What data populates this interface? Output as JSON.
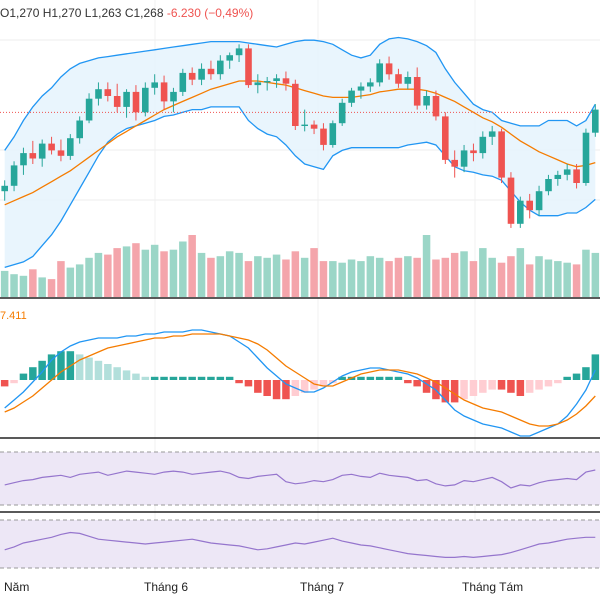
{
  "ohlc_header": {
    "open_label": "O",
    "open": "1,270",
    "high_label": "H",
    "high": "1,270",
    "low_label": "L",
    "low": "1,263",
    "close_label": "C",
    "close": "1,268",
    "change": "-6.230 (−0,49%)"
  },
  "macd_readout": "7.411",
  "colors": {
    "up": "#26a69a",
    "down": "#ef5350",
    "vol_up": "#9bd6c7",
    "vol_down": "#f4a5ab",
    "bb_band": "#2196f3",
    "bb_fill": "#e3f2fd",
    "ma": "#f57c00",
    "macd_line": "#2196f3",
    "signal_line": "#f57c00",
    "rsi": "#9575cd",
    "rsi_fill": "#ede7f6",
    "price_line": "#ef5350"
  },
  "x_axis_labels": [
    "Năm",
    "Tháng 6",
    "Tháng 7",
    "Tháng Tám"
  ],
  "chart_data": {
    "type": "candlestick",
    "title": "",
    "price_line": 1268,
    "y_range": [
      1180,
      1330
    ],
    "candles": [
      {
        "o": 1210,
        "h": 1218,
        "l": 1203,
        "c": 1214
      },
      {
        "o": 1214,
        "h": 1232,
        "l": 1210,
        "c": 1229
      },
      {
        "o": 1229,
        "h": 1242,
        "l": 1222,
        "c": 1238
      },
      {
        "o": 1238,
        "h": 1247,
        "l": 1230,
        "c": 1234
      },
      {
        "o": 1234,
        "h": 1248,
        "l": 1228,
        "c": 1245
      },
      {
        "o": 1245,
        "h": 1250,
        "l": 1237,
        "c": 1240
      },
      {
        "o": 1240,
        "h": 1248,
        "l": 1232,
        "c": 1236
      },
      {
        "o": 1236,
        "h": 1252,
        "l": 1233,
        "c": 1249
      },
      {
        "o": 1249,
        "h": 1265,
        "l": 1245,
        "c": 1262
      },
      {
        "o": 1262,
        "h": 1282,
        "l": 1260,
        "c": 1278
      },
      {
        "o": 1278,
        "h": 1290,
        "l": 1273,
        "c": 1285
      },
      {
        "o": 1285,
        "h": 1290,
        "l": 1276,
        "c": 1280
      },
      {
        "o": 1280,
        "h": 1289,
        "l": 1268,
        "c": 1272
      },
      {
        "o": 1272,
        "h": 1285,
        "l": 1264,
        "c": 1283
      },
      {
        "o": 1283,
        "h": 1288,
        "l": 1262,
        "c": 1268
      },
      {
        "o": 1268,
        "h": 1290,
        "l": 1265,
        "c": 1286
      },
      {
        "o": 1286,
        "h": 1296,
        "l": 1281,
        "c": 1290
      },
      {
        "o": 1290,
        "h": 1295,
        "l": 1270,
        "c": 1276
      },
      {
        "o": 1276,
        "h": 1286,
        "l": 1268,
        "c": 1283
      },
      {
        "o": 1283,
        "h": 1300,
        "l": 1280,
        "c": 1297
      },
      {
        "o": 1297,
        "h": 1301,
        "l": 1288,
        "c": 1292
      },
      {
        "o": 1292,
        "h": 1304,
        "l": 1288,
        "c": 1300
      },
      {
        "o": 1300,
        "h": 1306,
        "l": 1292,
        "c": 1296
      },
      {
        "o": 1296,
        "h": 1310,
        "l": 1292,
        "c": 1306
      },
      {
        "o": 1306,
        "h": 1312,
        "l": 1300,
        "c": 1310
      },
      {
        "o": 1310,
        "h": 1318,
        "l": 1305,
        "c": 1315
      },
      {
        "o": 1315,
        "h": 1318,
        "l": 1286,
        "c": 1288
      },
      {
        "o": 1288,
        "h": 1296,
        "l": 1282,
        "c": 1290
      },
      {
        "o": 1290,
        "h": 1294,
        "l": 1284,
        "c": 1291
      },
      {
        "o": 1291,
        "h": 1296,
        "l": 1286,
        "c": 1293
      },
      {
        "o": 1293,
        "h": 1298,
        "l": 1284,
        "c": 1289
      },
      {
        "o": 1289,
        "h": 1292,
        "l": 1255,
        "c": 1258
      },
      {
        "o": 1258,
        "h": 1270,
        "l": 1254,
        "c": 1259
      },
      {
        "o": 1259,
        "h": 1262,
        "l": 1252,
        "c": 1256
      },
      {
        "o": 1256,
        "h": 1260,
        "l": 1240,
        "c": 1244
      },
      {
        "o": 1244,
        "h": 1262,
        "l": 1242,
        "c": 1260
      },
      {
        "o": 1260,
        "h": 1278,
        "l": 1258,
        "c": 1275
      },
      {
        "o": 1275,
        "h": 1286,
        "l": 1272,
        "c": 1284
      },
      {
        "o": 1284,
        "h": 1290,
        "l": 1278,
        "c": 1287
      },
      {
        "o": 1287,
        "h": 1293,
        "l": 1283,
        "c": 1290
      },
      {
        "o": 1290,
        "h": 1307,
        "l": 1287,
        "c": 1304
      },
      {
        "o": 1304,
        "h": 1309,
        "l": 1292,
        "c": 1296
      },
      {
        "o": 1296,
        "h": 1300,
        "l": 1286,
        "c": 1289
      },
      {
        "o": 1289,
        "h": 1298,
        "l": 1285,
        "c": 1294
      },
      {
        "o": 1294,
        "h": 1301,
        "l": 1270,
        "c": 1273
      },
      {
        "o": 1273,
        "h": 1284,
        "l": 1270,
        "c": 1280
      },
      {
        "o": 1280,
        "h": 1284,
        "l": 1262,
        "c": 1265
      },
      {
        "o": 1265,
        "h": 1268,
        "l": 1230,
        "c": 1233
      },
      {
        "o": 1233,
        "h": 1240,
        "l": 1220,
        "c": 1228
      },
      {
        "o": 1228,
        "h": 1244,
        "l": 1224,
        "c": 1240
      },
      {
        "o": 1240,
        "h": 1245,
        "l": 1232,
        "c": 1238
      },
      {
        "o": 1238,
        "h": 1254,
        "l": 1234,
        "c": 1250
      },
      {
        "o": 1250,
        "h": 1258,
        "l": 1244,
        "c": 1254
      },
      {
        "o": 1254,
        "h": 1256,
        "l": 1216,
        "c": 1220
      },
      {
        "o": 1220,
        "h": 1224,
        "l": 1183,
        "c": 1186
      },
      {
        "o": 1186,
        "h": 1206,
        "l": 1183,
        "c": 1203
      },
      {
        "o": 1203,
        "h": 1208,
        "l": 1190,
        "c": 1196
      },
      {
        "o": 1196,
        "h": 1214,
        "l": 1192,
        "c": 1210
      },
      {
        "o": 1210,
        "h": 1222,
        "l": 1207,
        "c": 1219
      },
      {
        "o": 1219,
        "h": 1225,
        "l": 1214,
        "c": 1222
      },
      {
        "o": 1222,
        "h": 1230,
        "l": 1218,
        "c": 1226
      },
      {
        "o": 1226,
        "h": 1230,
        "l": 1212,
        "c": 1216
      },
      {
        "o": 1216,
        "h": 1256,
        "l": 1214,
        "c": 1253
      },
      {
        "o": 1253,
        "h": 1274,
        "l": 1250,
        "c": 1270
      }
    ],
    "bollinger_upper": [
      1240,
      1250,
      1262,
      1272,
      1280,
      1286,
      1294,
      1300,
      1304,
      1306,
      1308,
      1309,
      1310,
      1311,
      1312,
      1313,
      1314,
      1315,
      1316,
      1317,
      1318,
      1319,
      1320,
      1320,
      1320,
      1320,
      1319,
      1318,
      1317,
      1316,
      1318,
      1320,
      1321,
      1321,
      1320,
      1318,
      1314,
      1310,
      1308,
      1310,
      1318,
      1322,
      1323,
      1322,
      1320,
      1317,
      1312,
      1300,
      1290,
      1282,
      1274,
      1270,
      1268,
      1262,
      1260,
      1258,
      1258,
      1258,
      1262,
      1262,
      1262,
      1258,
      1262,
      1274
    ],
    "bollinger_lower": [
      1154,
      1156,
      1158,
      1162,
      1170,
      1178,
      1188,
      1200,
      1212,
      1224,
      1236,
      1246,
      1252,
      1256,
      1258,
      1260,
      1262,
      1265,
      1266,
      1268,
      1270,
      1270,
      1272,
      1272,
      1272,
      1272,
      1262,
      1256,
      1252,
      1250,
      1244,
      1236,
      1230,
      1228,
      1226,
      1236,
      1240,
      1242,
      1242,
      1242,
      1242,
      1242,
      1242,
      1244,
      1245,
      1246,
      1244,
      1236,
      1228,
      1225,
      1224,
      1222,
      1221,
      1218,
      1210,
      1202,
      1196,
      1192,
      1192,
      1192,
      1194,
      1194,
      1198,
      1204
    ],
    "moving_average": [
      1200,
      1203,
      1206,
      1209,
      1213,
      1217,
      1221,
      1225,
      1230,
      1235,
      1240,
      1245,
      1250,
      1254,
      1258,
      1262,
      1266,
      1270,
      1273,
      1276,
      1279,
      1282,
      1285,
      1287,
      1289,
      1291,
      1291,
      1291,
      1290,
      1289,
      1288,
      1286,
      1284,
      1282,
      1280,
      1279,
      1279,
      1279,
      1280,
      1281,
      1283,
      1284,
      1285,
      1285,
      1285,
      1284,
      1282,
      1279,
      1276,
      1272,
      1268,
      1264,
      1261,
      1257,
      1252,
      1247,
      1243,
      1239,
      1236,
      1233,
      1230,
      1228,
      1229,
      1231
    ],
    "volume": [
      16,
      14,
      13,
      17,
      12,
      11,
      22,
      18,
      20,
      24,
      27,
      26,
      30,
      31,
      33,
      29,
      32,
      28,
      29,
      34,
      38,
      27,
      24,
      25,
      28,
      27,
      22,
      25,
      24,
      26,
      23,
      28,
      24,
      30,
      22,
      22,
      21,
      23,
      22,
      25,
      24,
      22,
      24,
      25,
      24,
      38,
      23,
      24,
      27,
      28,
      22,
      30,
      24,
      21,
      25,
      30,
      20,
      25,
      23,
      22,
      21,
      20,
      29,
      27
    ],
    "macd_hist": [
      -2,
      -1,
      2,
      4,
      6,
      8,
      9,
      9,
      8,
      7,
      6,
      5,
      4,
      3,
      2,
      1,
      1,
      1,
      1,
      1,
      1,
      1,
      1,
      1,
      1,
      -1,
      -2,
      -4,
      -5,
      -6,
      -6,
      -5,
      -4,
      -3,
      -2,
      -1,
      1,
      1,
      1,
      1,
      1,
      1,
      1,
      -1,
      -2,
      -4,
      -6,
      -7,
      -7,
      -6,
      -5,
      -4,
      -3,
      -3,
      -4,
      -5,
      -4,
      -3,
      -2,
      -1,
      1,
      2,
      4,
      8
    ],
    "macd_line": [
      -14,
      -10,
      -6,
      -1,
      4,
      10,
      14,
      17,
      19,
      20,
      21,
      21,
      21,
      22,
      22,
      23,
      23,
      24,
      24,
      24,
      25,
      25,
      24,
      23,
      22,
      19,
      16,
      11,
      6,
      2,
      -2,
      -4,
      -6,
      -6,
      -4,
      -1,
      2,
      4,
      5,
      6,
      6,
      5,
      4,
      3,
      1,
      -2,
      -5,
      -10,
      -15,
      -18,
      -20,
      -22,
      -23,
      -24,
      -26,
      -28,
      -28,
      -26,
      -24,
      -22,
      -18,
      -12,
      -5,
      5
    ],
    "signal_line": [
      -16,
      -14,
      -11,
      -8,
      -4,
      0,
      4,
      7,
      10,
      12,
      14,
      16,
      17,
      18,
      19,
      20,
      21,
      21,
      22,
      22,
      23,
      23,
      23,
      23,
      22,
      21,
      20,
      18,
      15,
      11,
      7,
      4,
      1,
      -2,
      -3,
      -3,
      -1,
      1,
      3,
      4,
      5,
      5,
      5,
      4,
      3,
      1,
      -1,
      -4,
      -7,
      -10,
      -12,
      -14,
      -15,
      -16,
      -18,
      -20,
      -22,
      -23,
      -23,
      -22,
      -20,
      -17,
      -13,
      -8
    ],
    "rsi": [
      38,
      42,
      46,
      48,
      52,
      54,
      56,
      52,
      58,
      60,
      62,
      56,
      60,
      64,
      62,
      60,
      58,
      62,
      64,
      62,
      58,
      60,
      62,
      64,
      60,
      52,
      50,
      54,
      56,
      58,
      44,
      40,
      42,
      46,
      44,
      48,
      56,
      58,
      54,
      52,
      60,
      56,
      54,
      52,
      46,
      48,
      40,
      36,
      38,
      46,
      44,
      48,
      52,
      44,
      32,
      38,
      36,
      42,
      46,
      48,
      50,
      48,
      62,
      66
    ],
    "stoch": [
      38,
      44,
      52,
      56,
      60,
      64,
      70,
      74,
      72,
      66,
      60,
      58,
      56,
      54,
      52,
      50,
      52,
      54,
      56,
      58,
      60,
      56,
      52,
      50,
      48,
      46,
      42,
      38,
      40,
      44,
      48,
      52,
      50,
      54,
      58,
      62,
      56,
      52,
      48,
      46,
      42,
      38,
      34,
      30,
      28,
      26,
      24,
      22,
      22,
      24,
      22,
      24,
      26,
      28,
      32,
      38,
      44,
      50,
      52,
      56,
      60,
      62,
      64,
      64
    ]
  }
}
